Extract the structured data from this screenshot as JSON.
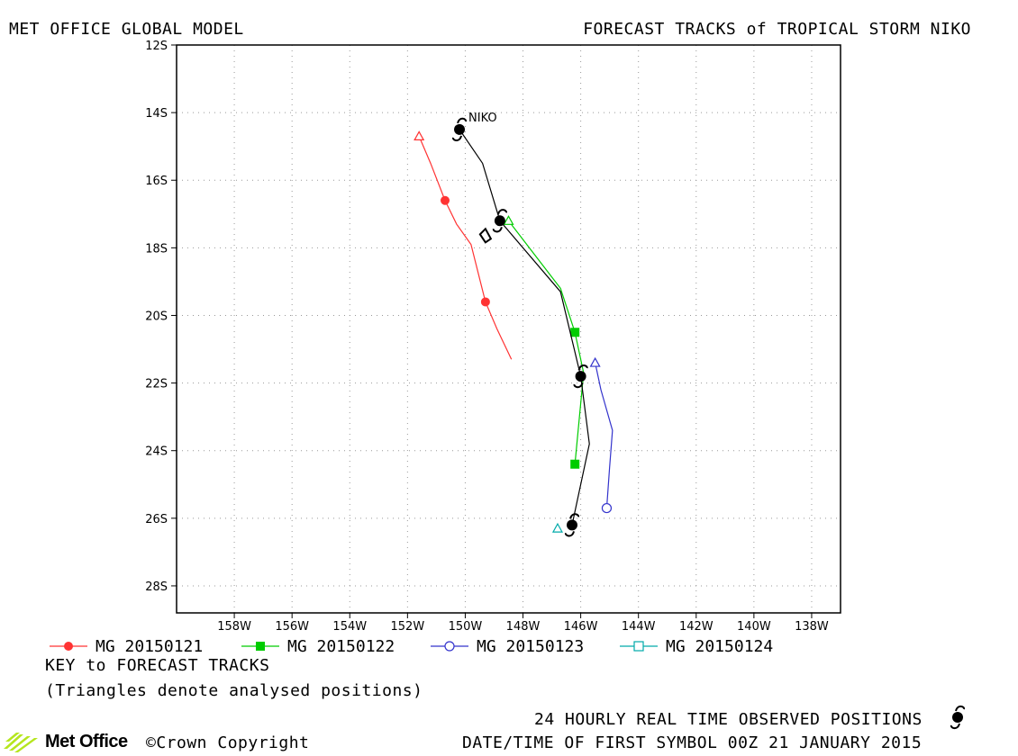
{
  "header": {
    "left": "MET OFFICE GLOBAL MODEL",
    "right": "FORECAST TRACKS of TROPICAL STORM NIKO"
  },
  "chart_data": {
    "type": "scatter",
    "title": "FORECAST TRACKS of TROPICAL STORM NIKO",
    "x_axis": {
      "unit": "degrees longitude (negative = W)",
      "range": [
        -160,
        -137
      ],
      "ticks": [
        -158,
        -156,
        -154,
        -152,
        -150,
        -148,
        -146,
        -144,
        -142,
        -140,
        -138
      ],
      "tick_labels": [
        "158W",
        "156W",
        "154W",
        "152W",
        "150W",
        "148W",
        "146W",
        "144W",
        "142W",
        "140W",
        "138W"
      ]
    },
    "y_axis": {
      "unit": "degrees latitude (negative = S)",
      "range": [
        -28.8,
        -12
      ],
      "ticks": [
        -12,
        -14,
        -16,
        -18,
        -20,
        -22,
        -24,
        -26,
        -28
      ],
      "tick_labels": [
        "12S",
        "14S",
        "16S",
        "18S",
        "20S",
        "22S",
        "24S",
        "26S",
        "28S"
      ]
    },
    "grid": true,
    "storm_label": "NIKO",
    "observed": {
      "name": "observed",
      "color": "#000000",
      "points": [
        [
          -150.2,
          -14.5
        ],
        [
          -149.4,
          -15.5
        ],
        [
          -148.8,
          -17.2
        ],
        [
          -146.7,
          -19.3
        ],
        [
          -146.0,
          -21.8
        ],
        [
          -145.7,
          -23.8
        ],
        [
          -146.3,
          -26.2
        ]
      ],
      "symbol_points": [
        [
          -150.2,
          -14.5
        ],
        [
          -148.8,
          -17.2
        ],
        [
          -146.0,
          -21.8
        ],
        [
          -146.3,
          -26.2
        ]
      ],
      "extra_marker": [
        -149.3,
        -17.6
      ]
    },
    "series": [
      {
        "name": "MG 20150121",
        "color": "#ff3333",
        "marker": "filled-circle",
        "analysed": [
          -151.6,
          -14.7
        ],
        "points": [
          [
            -151.6,
            -14.7
          ],
          [
            -151.2,
            -15.5
          ],
          [
            -150.7,
            -16.6
          ],
          [
            -150.3,
            -17.3
          ],
          [
            -149.8,
            -17.9
          ],
          [
            -149.3,
            -19.6
          ],
          [
            -148.9,
            -20.4
          ],
          [
            -148.4,
            -21.3
          ]
        ],
        "marked": [
          [
            -150.7,
            -16.6
          ],
          [
            -149.3,
            -19.6
          ]
        ]
      },
      {
        "name": "MG 20150122",
        "color": "#00cc00",
        "marker": "filled-square",
        "analysed": [
          -148.5,
          -17.2
        ],
        "points": [
          [
            -148.5,
            -17.2
          ],
          [
            -147.6,
            -18.2
          ],
          [
            -146.7,
            -19.2
          ],
          [
            -146.2,
            -20.5
          ],
          [
            -145.9,
            -21.7
          ],
          [
            -146.2,
            -24.4
          ]
        ],
        "marked": [
          [
            -146.2,
            -20.5
          ],
          [
            -146.2,
            -24.4
          ]
        ]
      },
      {
        "name": "MG 20150123",
        "color": "#3333cc",
        "marker": "open-circle",
        "analysed": [
          -145.5,
          -21.4
        ],
        "points": [
          [
            -145.5,
            -21.4
          ],
          [
            -145.3,
            -22.2
          ],
          [
            -144.9,
            -23.4
          ],
          [
            -145.0,
            -24.5
          ],
          [
            -145.1,
            -25.7
          ]
        ],
        "marked": [
          [
            -145.1,
            -25.7
          ]
        ]
      },
      {
        "name": "MG 20150124",
        "color": "#00aaaa",
        "marker": "open-square",
        "analysed": [
          -146.8,
          -26.3
        ],
        "points": [
          [
            -146.8,
            -26.3
          ]
        ],
        "marked": []
      }
    ]
  },
  "key": {
    "title": "KEY to FORECAST TRACKS",
    "note": "(Triangles denote analysed positions)"
  },
  "footer": {
    "observed_label": "24 HOURLY REAL TIME OBSERVED POSITIONS",
    "datetime": "DATE/TIME OF FIRST SYMBOL 00Z 21 JANUARY 2015",
    "brand": "Met Office",
    "copyright": "©Crown Copyright"
  },
  "colors": {
    "logo_green": "#b5e61d"
  }
}
